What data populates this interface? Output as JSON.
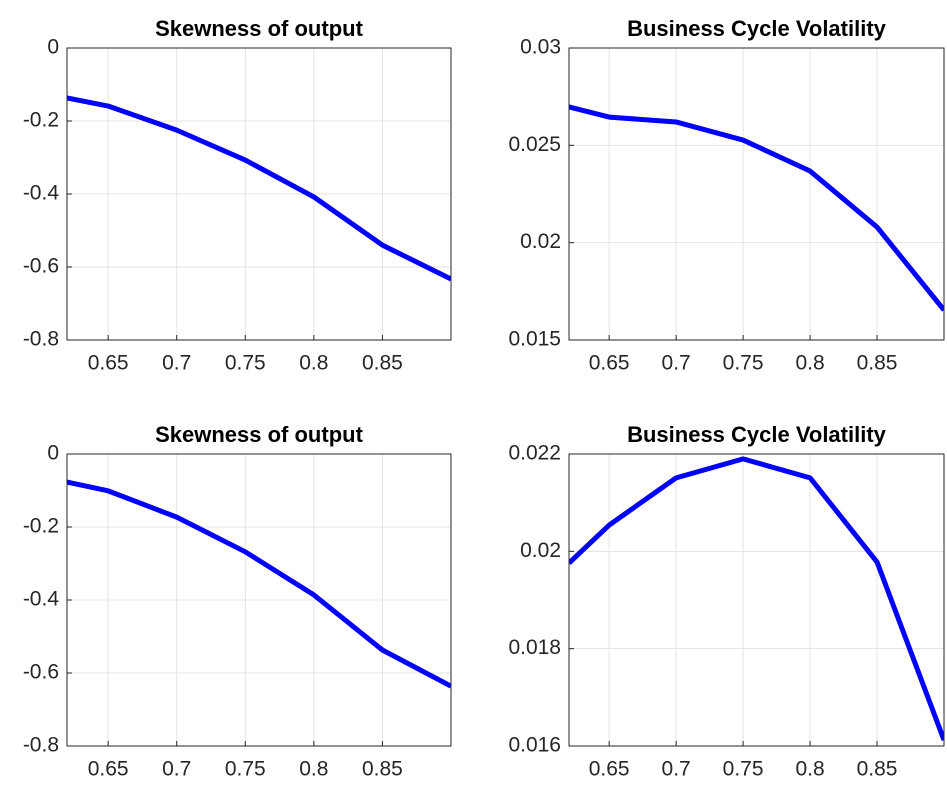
{
  "chart_data": [
    {
      "type": "line",
      "title": "Skewness of output",
      "x": [
        0.62,
        0.65,
        0.7,
        0.75,
        0.8,
        0.85,
        0.9
      ],
      "values": [
        -0.137,
        -0.159,
        -0.225,
        -0.307,
        -0.408,
        -0.54,
        -0.633
      ],
      "color": "#0000ff",
      "xlim": [
        0.62,
        0.9
      ],
      "ylim": [
        -0.8,
        0
      ],
      "xticks": [
        0.65,
        0.7,
        0.75,
        0.8,
        0.85
      ],
      "yticks": [
        -0.8,
        -0.6,
        -0.4,
        -0.2,
        0
      ],
      "grid": true
    },
    {
      "type": "line",
      "title": "Business Cycle Volatility",
      "x": [
        0.62,
        0.65,
        0.7,
        0.75,
        0.8,
        0.85,
        0.9
      ],
      "values": [
        0.02697,
        0.02645,
        0.0262,
        0.02527,
        0.02368,
        0.0208,
        0.01654
      ],
      "color": "#0000ff",
      "xlim": [
        0.62,
        0.9
      ],
      "ylim": [
        0.015,
        0.03
      ],
      "xticks": [
        0.65,
        0.7,
        0.75,
        0.8,
        0.85
      ],
      "yticks": [
        0.015,
        0.02,
        0.025,
        0.03
      ],
      "grid": true
    },
    {
      "type": "line",
      "title": "Skewness of output",
      "x": [
        0.62,
        0.65,
        0.7,
        0.75,
        0.8,
        0.85,
        0.9
      ],
      "values": [
        -0.077,
        -0.101,
        -0.173,
        -0.268,
        -0.386,
        -0.537,
        -0.636
      ],
      "color": "#0000ff",
      "xlim": [
        0.62,
        0.9
      ],
      "ylim": [
        -0.8,
        0
      ],
      "xticks": [
        0.65,
        0.7,
        0.75,
        0.8,
        0.85
      ],
      "yticks": [
        -0.8,
        -0.6,
        -0.4,
        -0.2,
        0
      ],
      "grid": true
    },
    {
      "type": "line",
      "title": "Business Cycle Volatility",
      "x": [
        0.62,
        0.65,
        0.7,
        0.75,
        0.8,
        0.85,
        0.9
      ],
      "values": [
        0.01976,
        0.02054,
        0.02151,
        0.0219,
        0.02151,
        0.01978,
        0.01612
      ],
      "color": "#0000ff",
      "xlim": [
        0.62,
        0.9
      ],
      "ylim": [
        0.016,
        0.022
      ],
      "xticks": [
        0.65,
        0.7,
        0.75,
        0.8,
        0.85
      ],
      "yticks": [
        0.016,
        0.018,
        0.02,
        0.022
      ],
      "grid": true
    }
  ]
}
